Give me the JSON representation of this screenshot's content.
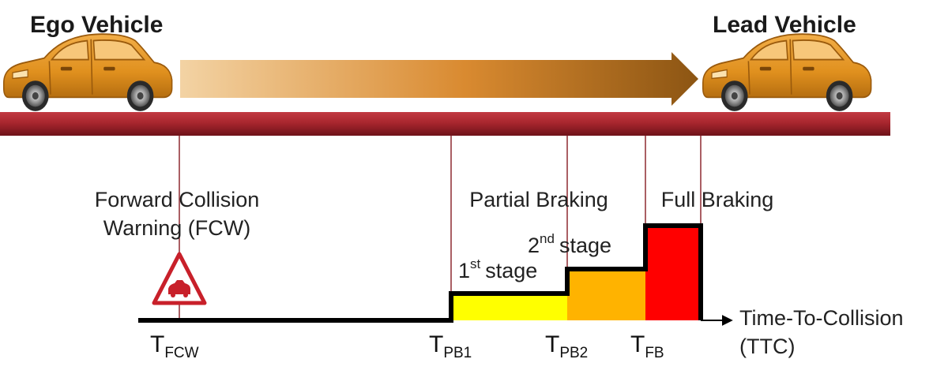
{
  "ego_vehicle_label": "Ego Vehicle",
  "lead_vehicle_label": "Lead Vehicle",
  "fcw_label_line1": "Forward Collision",
  "fcw_label_line2": "Warning (FCW)",
  "partial_braking_label": "Partial Braking",
  "full_braking_label": "Full Braking",
  "stage1": {
    "number": "1",
    "suffix": "st",
    "word": "stage"
  },
  "stage2": {
    "number": "2",
    "suffix": "nd",
    "word": "stage"
  },
  "axis": {
    "label_line1": "Time-To-Collision",
    "label_line2": "(TTC)"
  },
  "markers": [
    {
      "symbol": "T",
      "subscript": "FCW"
    },
    {
      "symbol": "T",
      "subscript": "PB1"
    },
    {
      "symbol": "T",
      "subscript": "PB2"
    },
    {
      "symbol": "T",
      "subscript": "FB"
    }
  ],
  "icons": {
    "ego_car": "car-icon",
    "lead_car": "car-icon",
    "motion_arrow": "arrow-right-icon",
    "warning": "warning-triangle-car-icon"
  },
  "colors": {
    "car_body": "#E0901E",
    "road": "#A8262E",
    "stage1_fill": "#FFFF00",
    "stage2_fill": "#FFB300",
    "full_braking_fill": "#FF0000",
    "warning_red": "#C8202A",
    "profile_line": "#000000"
  }
}
